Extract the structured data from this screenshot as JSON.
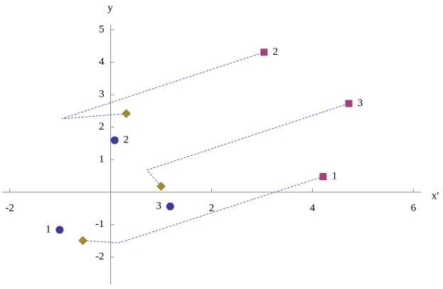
{
  "chart_data": {
    "type": "scatter",
    "x_label": "x'",
    "y_label": "y",
    "xlim": [
      -2.15,
      6.15
    ],
    "ylim": [
      -2.85,
      5.15
    ],
    "xticks": [
      -2,
      2,
      4,
      6
    ],
    "yticks": [
      -2,
      -1,
      1,
      2,
      3,
      4,
      5
    ],
    "series": [
      {
        "marker": "none",
        "dashed": true,
        "color": "#5a5ac0",
        "x": [
          -0.55,
          0.17,
          4.21,
          null,
          0.31,
          -0.97,
          3.04,
          null,
          1.0,
          0.72,
          4.72
        ],
        "y": [
          -1.49,
          -1.56,
          0.48,
          null,
          2.42,
          2.26,
          4.31,
          null,
          0.18,
          0.68,
          2.73
        ]
      },
      {
        "marker": "circle",
        "color": "#3a3a9e",
        "x": [
          -1.01,
          0.08,
          1.18
        ],
        "y": [
          -1.16,
          1.6,
          -0.44
        ],
        "labels": [
          "1",
          "2",
          "3"
        ]
      },
      {
        "marker": "square",
        "color": "#a3407a",
        "x": [
          4.21,
          3.04,
          4.72
        ],
        "y": [
          0.48,
          4.31,
          2.73
        ],
        "labels": [
          "1",
          "2",
          "3"
        ]
      },
      {
        "marker": "diamond",
        "color": "#a08a2e",
        "x": [
          -0.55,
          0.31,
          1.0
        ],
        "y": [
          -1.49,
          2.42,
          0.18
        ]
      }
    ]
  }
}
